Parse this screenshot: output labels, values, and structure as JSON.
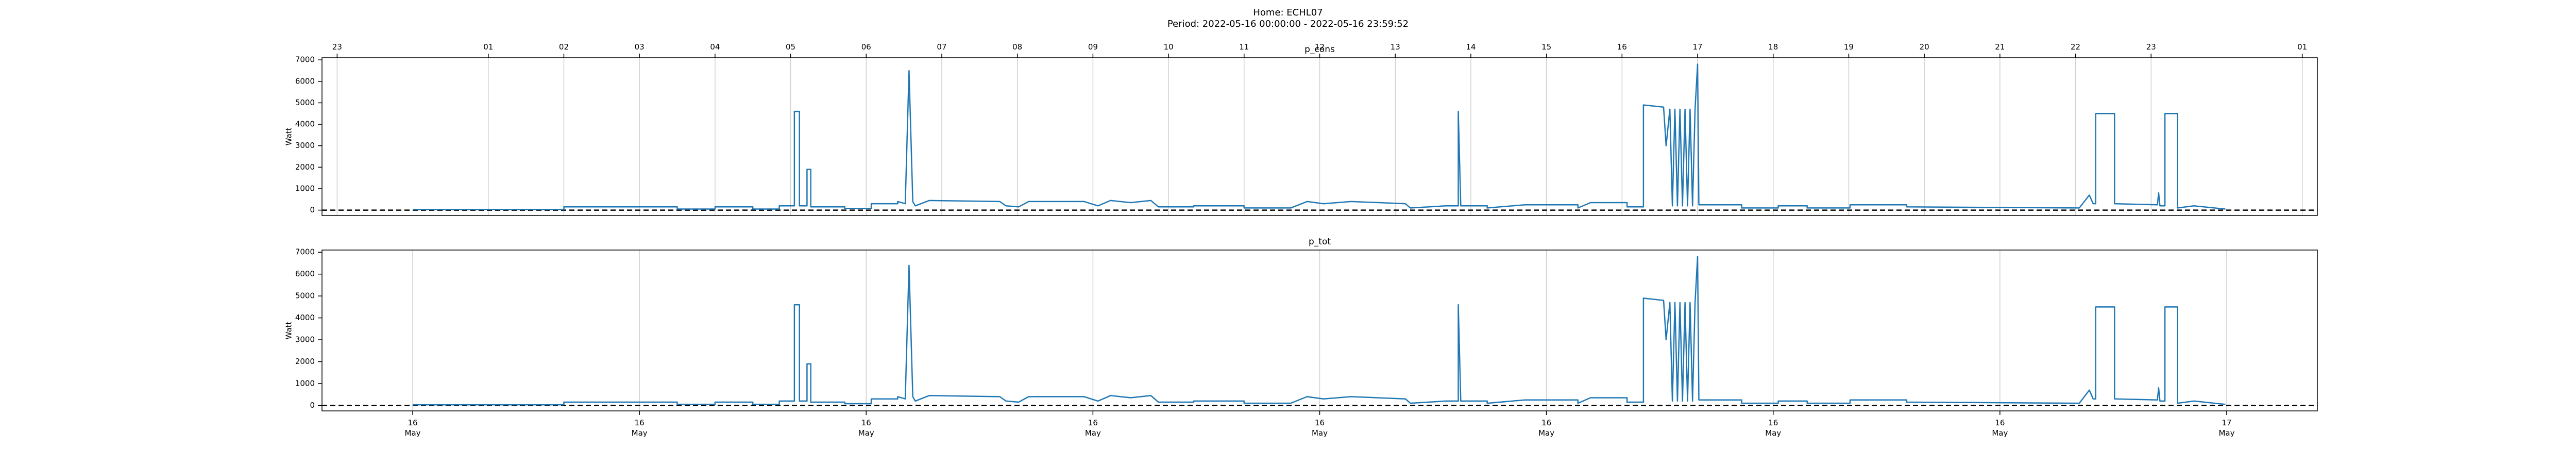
{
  "title": "Home: ECHL07",
  "subtitle": "Period: 2022-05-16 00:00:00 - 2022-05-16 23:59:52",
  "chart_data": [
    {
      "type": "line",
      "title": "p_cons",
      "ylabel": "Watt",
      "x": [
        "2022-05-16T00:00",
        "2022-05-16T02:00",
        "2022-05-16T02:00",
        "2022-05-16T03:30",
        "2022-05-16T03:30",
        "2022-05-16T04:00",
        "2022-05-16T04:00",
        "2022-05-16T04:30",
        "2022-05-16T04:30",
        "2022-05-16T04:51",
        "2022-05-16T04:51",
        "2022-05-16T05:03",
        "2022-05-16T05:03",
        "2022-05-16T05:07",
        "2022-05-16T05:07",
        "2022-05-16T05:13",
        "2022-05-16T05:13",
        "2022-05-16T05:16",
        "2022-05-16T05:16",
        "2022-05-16T05:43",
        "2022-05-16T05:43",
        "2022-05-16T06:04",
        "2022-05-16T06:04",
        "2022-05-16T06:25",
        "2022-05-16T06:25",
        "2022-05-16T06:31",
        "2022-05-16T06:34",
        "2022-05-16T06:37",
        "2022-05-16T06:39",
        "2022-05-16T06:50",
        "2022-05-16T07:46",
        "2022-05-16T07:51",
        "2022-05-16T08:01",
        "2022-05-16T08:09",
        "2022-05-16T08:53",
        "2022-05-16T09:04",
        "2022-05-16T09:14",
        "2022-05-16T09:30",
        "2022-05-16T09:46",
        "2022-05-16T09:52",
        "2022-05-16T10:20",
        "2022-05-16T10:20",
        "2022-05-16T11:00",
        "2022-05-16T11:00",
        "2022-05-16T11:37",
        "2022-05-16T11:50",
        "2022-05-16T12:03",
        "2022-05-16T12:25",
        "2022-05-16T13:08",
        "2022-05-16T13:12",
        "2022-05-16T13:40",
        "2022-05-16T13:50",
        "2022-05-16T13:50",
        "2022-05-16T13:52",
        "2022-05-16T14:13",
        "2022-05-16T14:13",
        "2022-05-16T14:43",
        "2022-05-16T15:25",
        "2022-05-16T15:25",
        "2022-05-16T15:35",
        "2022-05-16T16:04",
        "2022-05-16T16:04",
        "2022-05-16T16:17",
        "2022-05-16T16:17",
        "2022-05-16T16:33",
        "2022-05-16T16:35",
        "2022-05-16T16:38",
        "2022-05-16T16:40",
        "2022-05-16T16:42",
        "2022-05-16T16:44",
        "2022-05-16T16:46",
        "2022-05-16T16:48",
        "2022-05-16T16:50",
        "2022-05-16T16:52",
        "2022-05-16T16:54",
        "2022-05-16T16:56",
        "2022-05-16T16:58",
        "2022-05-16T17:00",
        "2022-05-16T17:01",
        "2022-05-16T17:35",
        "2022-05-16T17:35",
        "2022-05-16T18:04",
        "2022-05-16T18:04",
        "2022-05-16T18:27",
        "2022-05-16T18:27",
        "2022-05-16T19:01",
        "2022-05-16T19:01",
        "2022-05-16T19:46",
        "2022-05-16T19:46",
        "2022-05-16T22:03",
        "2022-05-16T22:11",
        "2022-05-16T22:14",
        "2022-05-16T22:16",
        "2022-05-16T22:16",
        "2022-05-16T22:31",
        "2022-05-16T22:31",
        "2022-05-16T23:05",
        "2022-05-16T23:06",
        "2022-05-16T23:07",
        "2022-05-16T23:11",
        "2022-05-16T23:11",
        "2022-05-16T23:21",
        "2022-05-16T23:21",
        "2022-05-16T23:34",
        "2022-05-16T23:59"
      ],
      "series": [
        {
          "name": "p_cons",
          "color": "#1f77b4",
          "values": [
            30,
            30,
            150,
            150,
            50,
            50,
            150,
            150,
            50,
            50,
            200,
            200,
            4600,
            4600,
            200,
            200,
            1900,
            1900,
            150,
            150,
            80,
            80,
            300,
            300,
            400,
            300,
            6500,
            400,
            200,
            450,
            400,
            200,
            150,
            400,
            400,
            200,
            450,
            350,
            450,
            150,
            150,
            200,
            200,
            100,
            100,
            400,
            300,
            400,
            300,
            100,
            200,
            200,
            4600,
            200,
            200,
            100,
            250,
            250,
            100,
            350,
            350,
            150,
            150,
            4900,
            4800,
            3000,
            4700,
            200,
            4700,
            200,
            4700,
            200,
            4700,
            200,
            4700,
            200,
            4700,
            6800,
            250,
            250,
            100,
            100,
            200,
            200,
            100,
            100,
            250,
            250,
            150,
            100,
            700,
            300,
            300,
            4500,
            4500,
            300,
            250,
            800,
            200,
            200,
            4500,
            4500,
            100,
            200,
            50
          ]
        }
      ],
      "xlim": [
        "2022-05-15T22:48",
        "2022-05-17T01:12"
      ],
      "xticks_top": [
        {
          "value": "2022-05-15T23:00",
          "label": "23"
        },
        {
          "value": "2022-05-16T01:00",
          "label": "01"
        },
        {
          "value": "2022-05-16T02:00",
          "label": "02"
        },
        {
          "value": "2022-05-16T03:00",
          "label": "03"
        },
        {
          "value": "2022-05-16T04:00",
          "label": "04"
        },
        {
          "value": "2022-05-16T05:00",
          "label": "05"
        },
        {
          "value": "2022-05-16T06:00",
          "label": "06"
        },
        {
          "value": "2022-05-16T07:00",
          "label": "07"
        },
        {
          "value": "2022-05-16T08:00",
          "label": "08"
        },
        {
          "value": "2022-05-16T09:00",
          "label": "09"
        },
        {
          "value": "2022-05-16T10:00",
          "label": "10"
        },
        {
          "value": "2022-05-16T11:00",
          "label": "11"
        },
        {
          "value": "2022-05-16T12:00",
          "label": "12"
        },
        {
          "value": "2022-05-16T13:00",
          "label": "13"
        },
        {
          "value": "2022-05-16T14:00",
          "label": "14"
        },
        {
          "value": "2022-05-16T15:00",
          "label": "15"
        },
        {
          "value": "2022-05-16T16:00",
          "label": "16"
        },
        {
          "value": "2022-05-16T17:00",
          "label": "17"
        },
        {
          "value": "2022-05-16T18:00",
          "label": "18"
        },
        {
          "value": "2022-05-16T19:00",
          "label": "19"
        },
        {
          "value": "2022-05-16T20:00",
          "label": "20"
        },
        {
          "value": "2022-05-16T21:00",
          "label": "21"
        },
        {
          "value": "2022-05-16T22:00",
          "label": "22"
        },
        {
          "value": "2022-05-16T23:00",
          "label": "23"
        },
        {
          "value": "2022-05-17T01:00",
          "label": "01"
        }
      ],
      "ylim": [
        -250,
        7100
      ],
      "yticks": [
        0,
        1000,
        2000,
        3000,
        4000,
        5000,
        6000,
        7000
      ],
      "hline": 0,
      "grid": true
    },
    {
      "type": "line",
      "title": "p_tot",
      "ylabel": "Watt",
      "x": [
        "2022-05-16T00:00",
        "2022-05-16T02:00",
        "2022-05-16T02:00",
        "2022-05-16T03:30",
        "2022-05-16T03:30",
        "2022-05-16T04:00",
        "2022-05-16T04:00",
        "2022-05-16T04:30",
        "2022-05-16T04:30",
        "2022-05-16T04:51",
        "2022-05-16T04:51",
        "2022-05-16T05:03",
        "2022-05-16T05:03",
        "2022-05-16T05:07",
        "2022-05-16T05:07",
        "2022-05-16T05:13",
        "2022-05-16T05:13",
        "2022-05-16T05:16",
        "2022-05-16T05:16",
        "2022-05-16T05:43",
        "2022-05-16T05:43",
        "2022-05-16T06:04",
        "2022-05-16T06:04",
        "2022-05-16T06:25",
        "2022-05-16T06:25",
        "2022-05-16T06:31",
        "2022-05-16T06:34",
        "2022-05-16T06:37",
        "2022-05-16T06:39",
        "2022-05-16T06:50",
        "2022-05-16T07:46",
        "2022-05-16T07:51",
        "2022-05-16T08:01",
        "2022-05-16T08:09",
        "2022-05-16T08:53",
        "2022-05-16T09:04",
        "2022-05-16T09:14",
        "2022-05-16T09:30",
        "2022-05-16T09:46",
        "2022-05-16T09:52",
        "2022-05-16T10:20",
        "2022-05-16T10:20",
        "2022-05-16T11:00",
        "2022-05-16T11:00",
        "2022-05-16T11:37",
        "2022-05-16T11:50",
        "2022-05-16T12:03",
        "2022-05-16T12:25",
        "2022-05-16T13:08",
        "2022-05-16T13:12",
        "2022-05-16T13:40",
        "2022-05-16T13:50",
        "2022-05-16T13:50",
        "2022-05-16T13:52",
        "2022-05-16T14:13",
        "2022-05-16T14:13",
        "2022-05-16T14:43",
        "2022-05-16T15:25",
        "2022-05-16T15:25",
        "2022-05-16T15:35",
        "2022-05-16T16:04",
        "2022-05-16T16:04",
        "2022-05-16T16:17",
        "2022-05-16T16:17",
        "2022-05-16T16:33",
        "2022-05-16T16:35",
        "2022-05-16T16:38",
        "2022-05-16T16:40",
        "2022-05-16T16:42",
        "2022-05-16T16:44",
        "2022-05-16T16:46",
        "2022-05-16T16:48",
        "2022-05-16T16:50",
        "2022-05-16T16:52",
        "2022-05-16T16:54",
        "2022-05-16T16:56",
        "2022-05-16T16:58",
        "2022-05-16T17:00",
        "2022-05-16T17:01",
        "2022-05-16T17:35",
        "2022-05-16T17:35",
        "2022-05-16T18:04",
        "2022-05-16T18:04",
        "2022-05-16T18:27",
        "2022-05-16T18:27",
        "2022-05-16T19:01",
        "2022-05-16T19:01",
        "2022-05-16T19:46",
        "2022-05-16T19:46",
        "2022-05-16T22:03",
        "2022-05-16T22:11",
        "2022-05-16T22:14",
        "2022-05-16T22:16",
        "2022-05-16T22:16",
        "2022-05-16T22:31",
        "2022-05-16T22:31",
        "2022-05-16T23:05",
        "2022-05-16T23:06",
        "2022-05-16T23:07",
        "2022-05-16T23:11",
        "2022-05-16T23:11",
        "2022-05-16T23:21",
        "2022-05-16T23:21",
        "2022-05-16T23:34",
        "2022-05-16T23:59"
      ],
      "series": [
        {
          "name": "p_tot",
          "color": "#1f77b4",
          "values": [
            30,
            30,
            150,
            150,
            50,
            50,
            150,
            150,
            50,
            50,
            200,
            200,
            4600,
            4600,
            200,
            200,
            1900,
            1900,
            150,
            150,
            80,
            80,
            300,
            300,
            400,
            300,
            6400,
            400,
            200,
            450,
            400,
            200,
            150,
            400,
            400,
            200,
            450,
            350,
            450,
            150,
            150,
            200,
            200,
            100,
            100,
            400,
            300,
            400,
            300,
            100,
            200,
            200,
            4600,
            200,
            200,
            100,
            250,
            250,
            100,
            350,
            350,
            150,
            150,
            4900,
            4800,
            3000,
            4700,
            200,
            4700,
            200,
            4700,
            200,
            4700,
            200,
            4700,
            200,
            4700,
            6800,
            250,
            250,
            100,
            100,
            200,
            200,
            100,
            100,
            250,
            250,
            150,
            100,
            700,
            300,
            300,
            4500,
            4500,
            300,
            250,
            800,
            200,
            200,
            4500,
            4500,
            100,
            200,
            50
          ]
        }
      ],
      "xlim": [
        "2022-05-15T22:48",
        "2022-05-17T01:12"
      ],
      "xticks": [
        {
          "value": "2022-05-16T00:00",
          "label": "16\nMay"
        },
        {
          "value": "2022-05-16T03:00",
          "label": "16\nMay"
        },
        {
          "value": "2022-05-16T06:00",
          "label": "16\nMay"
        },
        {
          "value": "2022-05-16T09:00",
          "label": "16\nMay"
        },
        {
          "value": "2022-05-16T12:00",
          "label": "16\nMay"
        },
        {
          "value": "2022-05-16T15:00",
          "label": "16\nMay"
        },
        {
          "value": "2022-05-16T18:00",
          "label": "16\nMay"
        },
        {
          "value": "2022-05-16T21:00",
          "label": "16\nMay"
        },
        {
          "value": "2022-05-17T00:00",
          "label": "17\nMay"
        }
      ],
      "ylim": [
        -250,
        7100
      ],
      "yticks": [
        0,
        1000,
        2000,
        3000,
        4000,
        5000,
        6000,
        7000
      ],
      "hline": 0,
      "grid": true
    }
  ]
}
